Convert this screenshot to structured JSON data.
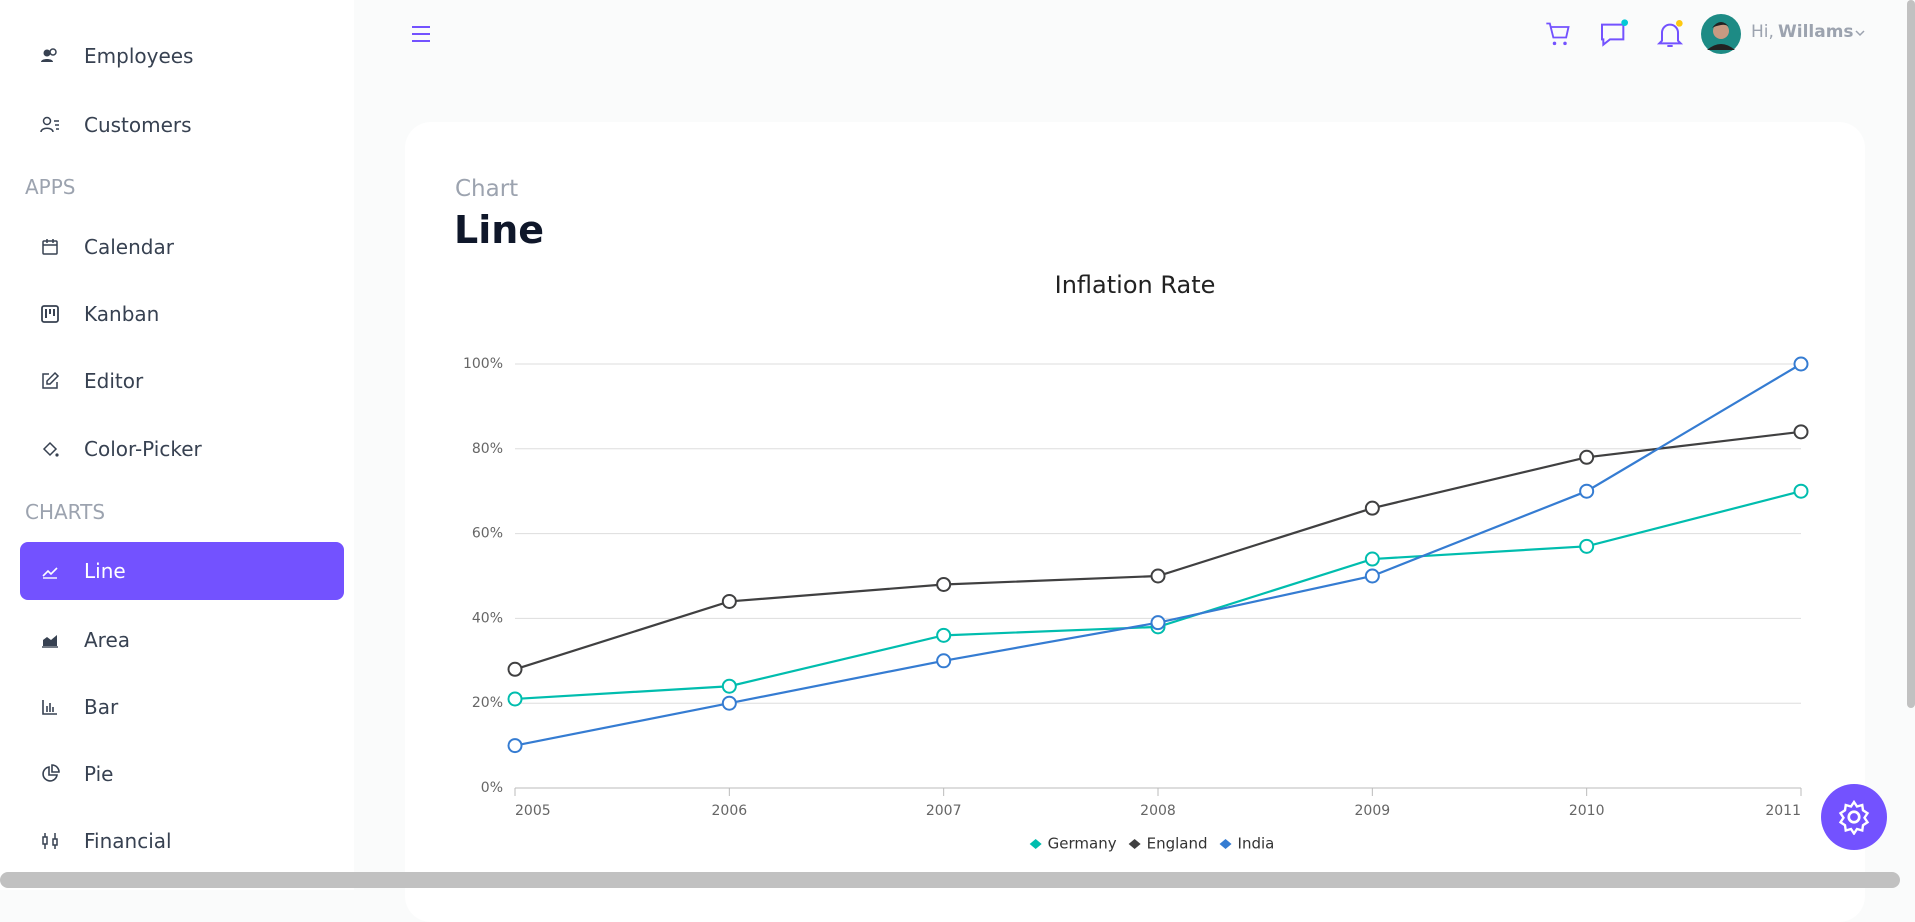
{
  "sidebar": {
    "sections": [
      {
        "items": [
          "Employees",
          "Customers"
        ]
      },
      {
        "title": "APPS",
        "items": [
          "Calendar",
          "Kanban",
          "Editor",
          "Color-Picker"
        ]
      },
      {
        "title": "CHARTS",
        "items": [
          "Line",
          "Area",
          "Bar",
          "Pie",
          "Financial"
        ]
      }
    ]
  },
  "header": {
    "greeting": "Hi,",
    "user": "Willams"
  },
  "page": {
    "category": "Chart",
    "title": "Line"
  },
  "chart_data": {
    "type": "line",
    "title": "Inflation Rate",
    "x": [
      2005,
      2006,
      2007,
      2008,
      2009,
      2010,
      2011
    ],
    "xlim": [
      2005,
      2011
    ],
    "xticks": [
      2005,
      2006,
      2007,
      2008,
      2009,
      2010,
      2011
    ],
    "ylim": [
      0,
      100
    ],
    "yticks": [
      {
        "value": 0,
        "label": "0%"
      },
      {
        "value": 20,
        "label": "20%"
      },
      {
        "value": 40,
        "label": "40%"
      },
      {
        "value": 60,
        "label": "60%"
      },
      {
        "value": 80,
        "label": "80%"
      },
      {
        "value": 100,
        "label": "100%"
      }
    ],
    "grid": true,
    "legend": "bottom",
    "series": [
      {
        "name": "Germany",
        "color": "#00bdae",
        "values": [
          21,
          24,
          36,
          38,
          54,
          57,
          70
        ]
      },
      {
        "name": "England",
        "color": "#404041",
        "values": [
          28,
          44,
          48,
          50,
          66,
          78,
          84
        ]
      },
      {
        "name": "India",
        "color": "#357cd2",
        "values": [
          10,
          20,
          30,
          39,
          50,
          70,
          100
        ]
      }
    ]
  }
}
